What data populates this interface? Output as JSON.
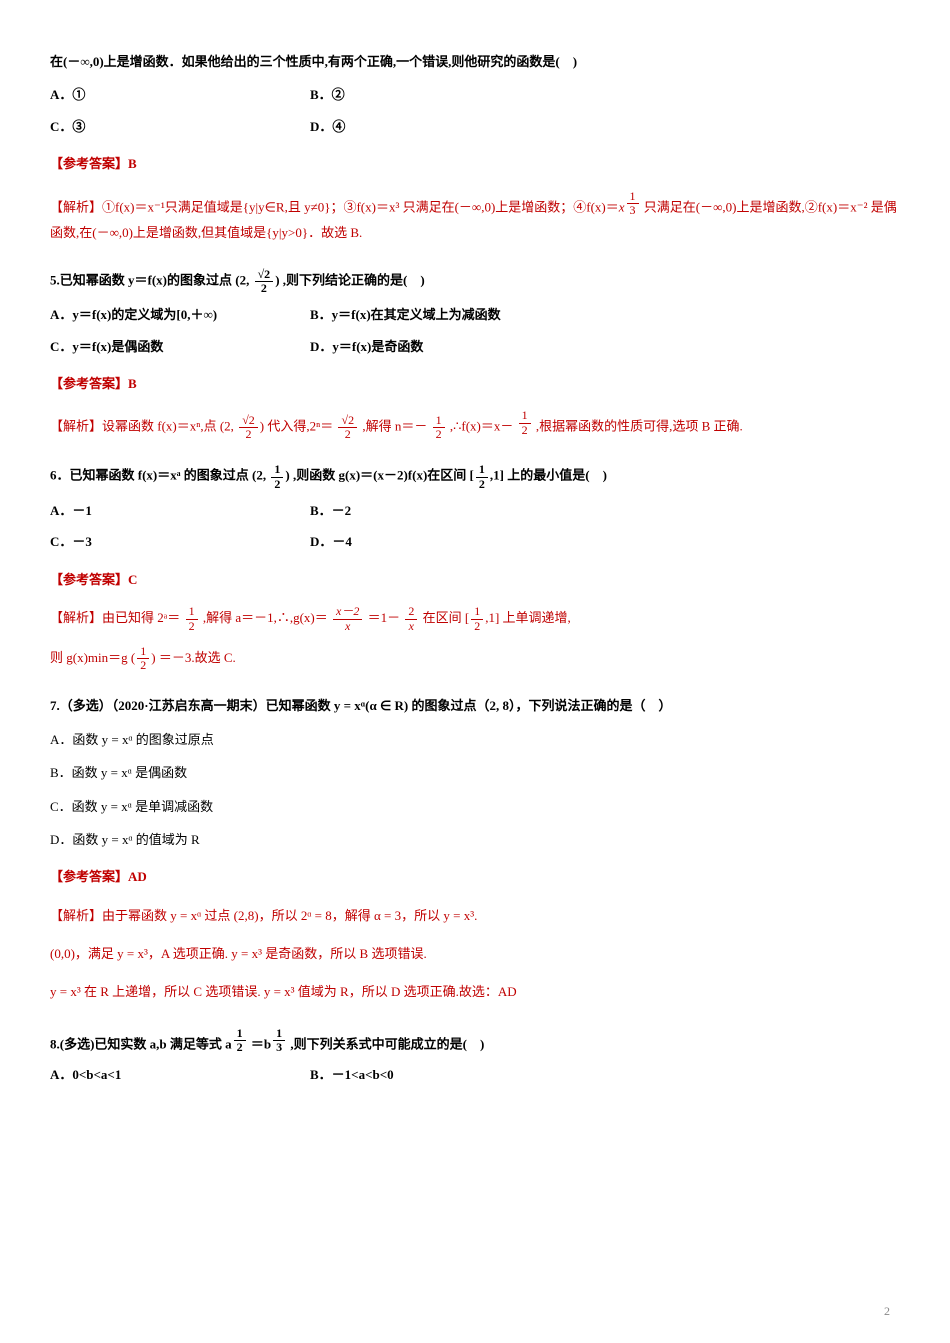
{
  "intro_line": "在(－∞,0)上是增函数．如果他给出的三个性质中,有两个正确,一个错误,则他研究的函数是(　)",
  "q_intro_options": {
    "A": "A．①",
    "B": "B．②",
    "C": "C．③",
    "D": "D．④"
  },
  "ans_intro": "【参考答案】B",
  "analysis_intro_prefix": "【解析】①f(x)＝x⁻¹只满足值域是{y|y∈R,且 y≠0}；③f(x)＝x³ 只满足在(－∞,0)上是增函数；④f(x)＝",
  "analysis_intro_exp_num": "1",
  "analysis_intro_exp_den": "3",
  "analysis_intro_suffix": " 只满足在(－∞,0)上是增函数,②f(x)＝x⁻² 是偶函数,在(－∞,0)上是增函数,但其值域是{y|y>0}．故选 B.",
  "q5_prefix": "5.已知幂函数 y＝f(x)的图象过点 ",
  "q5_point_num": "√2",
  "q5_point_den": "2",
  "q5_suffix": " ,则下列结论正确的是(　)",
  "q5_options": {
    "A": "A．y＝f(x)的定义域为[0,＋∞)",
    "B": "B．y＝f(x)在其定义域上为减函数",
    "C": "C．y＝f(x)是偶函数",
    "D": "D．y＝f(x)是奇函数"
  },
  "ans5": "【参考答案】B",
  "analysis5_prefix": "【解析】设幂函数 f(x)＝xⁿ,点 ",
  "analysis5_mid1": " 代入得,2ⁿ＝ ",
  "analysis5_mid2": " ,解得 n＝－ ",
  "analysis5_mid3": " ,∴f(x)＝x－ ",
  "analysis5_suffix": " ,根据幂函数的性质可得,选项 B 正确.",
  "frac_half_num": "1",
  "frac_half_den": "2",
  "q6_prefix": "6．已知幂函数 f(x)＝xᵃ 的图象过点 ",
  "q6_mid": " ,则函数 g(x)＝(x－2)f(x)在区间 ",
  "q6_interval_pre": "[",
  "q6_interval_post": ",1]",
  "q6_suffix": " 上的最小值是(　)",
  "q6_options": {
    "A": "A．－1",
    "B": "B．－2",
    "C": "C．－3",
    "D": "D．－4"
  },
  "ans6": "【参考答案】C",
  "analysis6_prefix": "【解析】由已知得 2ᵃ＝ ",
  "analysis6_mid1": " ,解得 a＝－1,∴,g(x)＝ ",
  "analysis6_frac1_num": "x－2",
  "analysis6_frac1_den": "x",
  "analysis6_eq": " ＝1－ ",
  "analysis6_frac2_num": "2",
  "analysis6_frac2_den": "x",
  "analysis6_mid2": " 在区间 ",
  "analysis6_suffix": " 上单调递增,",
  "analysis6_line2_prefix": "则 g(x)min＝g ",
  "analysis6_line2_suffix": " ＝－3.故选 C.",
  "q7_text": "7.（多选）（2020·江苏启东高一期末）已知幂函数 y = xᵅ(α ∈ R) 的图象过点（2, 8），下列说法正确的是（　）",
  "q7_options": {
    "A": "A．函数 y = xᵅ 的图象过原点",
    "B": "B．函数 y = xᵅ 是偶函数",
    "C": "C．函数 y = xᵅ 是单调减函数",
    "D": "D．函数 y = xᵅ 的值域为 R"
  },
  "ans7": "【参考答案】AD",
  "analysis7_l1": "【解析】由于幂函数 y = xᵅ 过点 (2,8)，所以 2ᵅ = 8，解得 α = 3，所以 y = x³.",
  "analysis7_l2": "(0,0)，满足 y = x³，A 选项正确. y = x³ 是奇函数，所以 B 选项错误.",
  "analysis7_l3": "y = x³ 在 R 上递增，所以 C 选项错误. y = x³ 值域为 R，所以 D 选项正确.故选：AD",
  "q8_prefix": "8.(多选)已知实数 a,b 满足等式 a",
  "q8_exp1_num": "1",
  "q8_exp1_den": "2",
  "q8_mid": " ＝b",
  "q8_exp2_num": "1",
  "q8_exp2_den": "3",
  "q8_suffix": " ,则下列关系式中可能成立的是(　)",
  "q8_options": {
    "A": "A．0<b<a<1",
    "B": "B．－1<a<b<0"
  },
  "page_number": "2",
  "colors": {
    "body_text": "#000000",
    "accent_red": "#c00000",
    "page_num": "#888888",
    "background": "#ffffff"
  },
  "typography": {
    "base_fontsize_pt": 10,
    "line_height": 1.8,
    "font_family": "SimSun"
  }
}
